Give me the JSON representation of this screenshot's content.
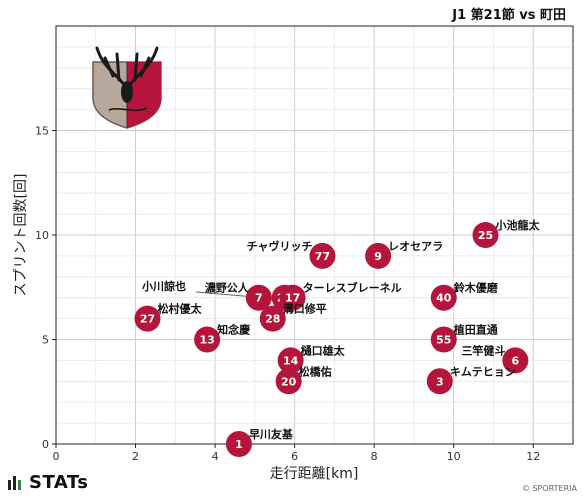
{
  "chart_data": {
    "type": "scatter",
    "title": "J1 第21節 vs 町田",
    "xlabel": "走行距離[km]",
    "ylabel": "スプリント回数[回]",
    "xlim": [
      0,
      13
    ],
    "ylim": [
      0,
      20
    ],
    "xticks": [
      "0",
      "2",
      "4",
      "6",
      "8",
      "10",
      "12"
    ],
    "yticks": [
      "0",
      "5",
      "10",
      "15"
    ],
    "grid": true,
    "point_color": "#b5153a",
    "points": [
      {
        "number": "25",
        "name": "小池龍太",
        "x": 10.8,
        "y": 10,
        "label_side": "right"
      },
      {
        "number": "9",
        "name": "レオセアラ",
        "x": 8.1,
        "y": 9,
        "label_side": "right"
      },
      {
        "number": "77",
        "name": "チャヴリッチ",
        "x": 6.7,
        "y": 9,
        "label_side": "left"
      },
      {
        "number": "40",
        "name": "鈴木優磨",
        "x": 9.75,
        "y": 7,
        "label_side": "right"
      },
      {
        "number": "7",
        "name": "濃野公人",
        "x": 5.1,
        "y": 7,
        "label_side": "left"
      },
      {
        "number": "21",
        "name": "",
        "x": 5.75,
        "y": 7,
        "label_side": "right"
      },
      {
        "number": "17",
        "name": "ターレスブレーネル",
        "x": 5.95,
        "y": 7,
        "label_side": "right"
      },
      {
        "number": "28",
        "name": "溝口修平",
        "x": 5.45,
        "y": 6,
        "label_side": "right"
      },
      {
        "number": "27",
        "name": "松村優太",
        "x": 2.3,
        "y": 6,
        "label_side": "right"
      },
      {
        "number": "13",
        "name": "知念慶",
        "x": 3.8,
        "y": 5,
        "label_side": "right"
      },
      {
        "number": "55",
        "name": "植田直通",
        "x": 9.75,
        "y": 5,
        "label_side": "right"
      },
      {
        "number": "14",
        "name": "樋口雄太",
        "x": 5.9,
        "y": 4,
        "label_side": "right"
      },
      {
        "number": "6",
        "name": "三竿健斗",
        "x": 11.55,
        "y": 4,
        "label_side": "left"
      },
      {
        "number": "20",
        "name": "松橋佑",
        "x": 5.85,
        "y": 3,
        "label_side": "right"
      },
      {
        "number": "3",
        "name": "キムテヒョン",
        "x": 9.65,
        "y": 3,
        "label_side": "right"
      },
      {
        "number": "1",
        "name": "早川友基",
        "x": 4.6,
        "y": 0,
        "label_side": "right"
      }
    ],
    "callout": {
      "name": "小川諒也",
      "x": 5.2,
      "y": 7
    }
  },
  "logo": {
    "primary": "#b5153a",
    "secondary": "#b8a89c"
  },
  "brand": {
    "name": "STATs",
    "credit": "© SPORTERIA"
  }
}
